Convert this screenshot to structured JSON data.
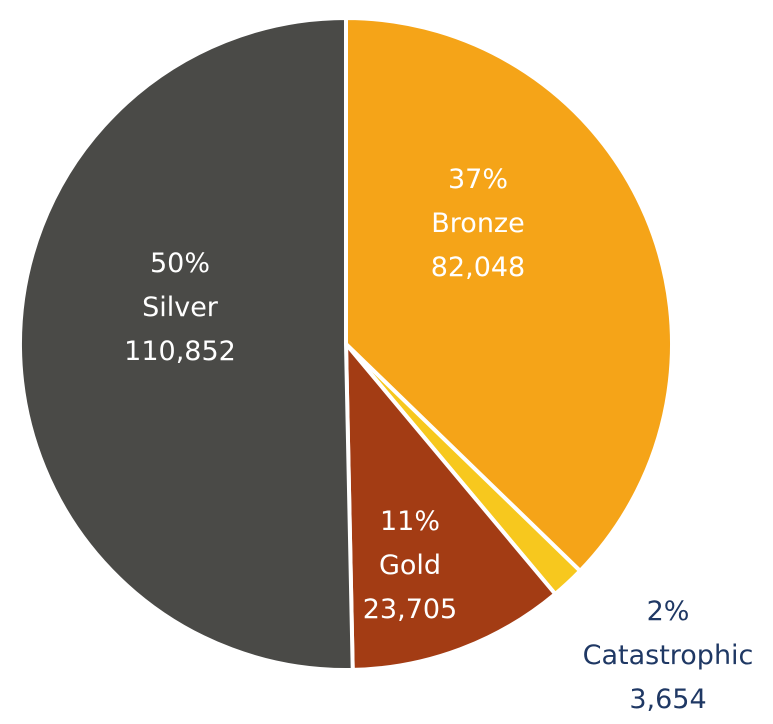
{
  "chart_data": {
    "type": "pie",
    "title": "",
    "start_angle_deg": 90,
    "direction": "clockwise",
    "slices": [
      {
        "name": "Bronze",
        "value": 82048,
        "percent_label": "37%",
        "value_label": "82,048",
        "color": "#f5a418",
        "label_color": "#ffffff",
        "label_position": "inside"
      },
      {
        "name": "Catastrophic",
        "value": 3654,
        "percent_label": "2%",
        "value_label": "3,654",
        "color": "#f7c81e",
        "label_color": "#1f3864",
        "label_position": "outside"
      },
      {
        "name": "Gold",
        "value": 23705,
        "percent_label": "11%",
        "value_label": "23,705",
        "color": "#a33c14",
        "label_color": "#ffffff",
        "label_position": "inside"
      },
      {
        "name": "Silver",
        "value": 110852,
        "percent_label": "50%",
        "value_label": "110,852",
        "color": "#4a4a47",
        "label_color": "#ffffff",
        "label_position": "inside"
      }
    ],
    "separator_color": "#ffffff"
  }
}
